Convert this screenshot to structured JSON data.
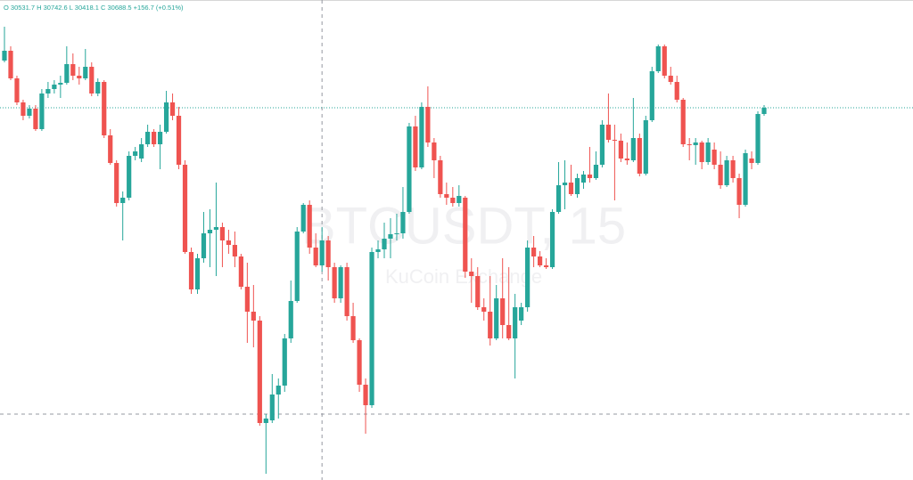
{
  "chart_data": {
    "type": "candlestick",
    "header": "O 30531.7  H 30742.6  L 30418.1  C 30688.5  +156.7 (+0.51%)",
    "watermark": "BTCUSDT, 15",
    "watermark_sub": "KuCoin Exchange",
    "up_color": "#26a69a",
    "down_color": "#ef5350",
    "ylim": [
      29852,
      30930
    ],
    "crosshair": {
      "x_index": 51,
      "y": 30000
    },
    "open": [
      30794,
      30816,
      30754,
      30700,
      30670,
      30686,
      30640,
      30720,
      30730,
      30740,
      30744,
      30786,
      30760,
      30754,
      30780,
      30720,
      30746,
      30626,
      30564,
      30474,
      30486,
      30580,
      30574,
      30606,
      30634,
      30606,
      30634,
      30700,
      30670,
      30560,
      30364,
      30280,
      30350,
      30406,
      30414,
      30420,
      30390,
      30380,
      30354,
      30286,
      30230,
      30210,
      29980,
      29986,
      30044,
      30064,
      30170,
      30254,
      30410,
      30470,
      30374,
      30334,
      30390,
      30330,
      30260,
      30330,
      30220,
      30166,
      30066,
      30020,
      30364,
      30370,
      30394,
      30404,
      30406,
      30454,
      30646,
      30554,
      30690,
      30610,
      30570,
      30494,
      30486,
      30474,
      30486,
      30320,
      30310,
      30240,
      30230,
      30170,
      30260,
      30200,
      30170,
      30210,
      30240,
      30374,
      30354,
      30334,
      30330,
      30454,
      30514,
      30520,
      30494,
      30520,
      30538,
      30530,
      30560,
      30650,
      30616,
      30614,
      30574,
      30570,
      30620,
      30540,
      30660,
      30770,
      30826,
      30760,
      30746,
      30706,
      30606,
      30604,
      30610,
      30566,
      30594,
      30560,
      30514,
      30570,
      30530,
      30470,
      30574,
      30564,
      30674
    ],
    "high": [
      30870,
      30826,
      30760,
      30706,
      30694,
      30694,
      30730,
      30746,
      30750,
      30760,
      30826,
      30810,
      30780,
      30820,
      30790,
      30754,
      30750,
      30640,
      30570,
      30500,
      30590,
      30600,
      30620,
      30650,
      30640,
      30650,
      30726,
      30720,
      30690,
      30570,
      30374,
      30360,
      30454,
      30460,
      30520,
      30430,
      30414,
      30410,
      30360,
      30340,
      30290,
      30220,
      30000,
      30090,
      30080,
      30180,
      30300,
      30420,
      30474,
      30480,
      30406,
      30420,
      30400,
      30340,
      30334,
      30340,
      30250,
      30170,
      30080,
      30374,
      30390,
      30430,
      30440,
      30450,
      30510,
      30654,
      30670,
      30700,
      30736,
      30620,
      30580,
      30520,
      30510,
      30514,
      30490,
      30350,
      30330,
      30260,
      30310,
      30290,
      30350,
      30330,
      30270,
      30250,
      30390,
      30400,
      30366,
      30350,
      30460,
      30566,
      30570,
      30560,
      30540,
      30546,
      30600,
      30590,
      30660,
      30720,
      30650,
      30630,
      30610,
      30710,
      30630,
      30670,
      30780,
      30830,
      30830,
      30780,
      30760,
      30710,
      30620,
      30620,
      30614,
      30620,
      30610,
      30590,
      30580,
      30580,
      30540,
      30594,
      30590,
      30680,
      30694
    ],
    "low": [
      30790,
      30750,
      30694,
      30660,
      30664,
      30636,
      30636,
      30710,
      30720,
      30710,
      30740,
      30750,
      30740,
      30750,
      30714,
      30714,
      30620,
      30560,
      30466,
      30390,
      30480,
      30570,
      30566,
      30600,
      30600,
      30550,
      30630,
      30660,
      30550,
      30360,
      30270,
      30270,
      30340,
      30330,
      30310,
      30330,
      30360,
      30330,
      30280,
      30160,
      30150,
      29974,
      29866,
      29980,
      29990,
      30050,
      30160,
      30250,
      30406,
      30360,
      30330,
      30320,
      30300,
      30250,
      30250,
      30210,
      30160,
      30050,
      29956,
      30014,
      30350,
      30350,
      30350,
      30390,
      30394,
      30450,
      30546,
      30550,
      30600,
      30530,
      30486,
      30470,
      30466,
      30466,
      30306,
      30250,
      30234,
      30210,
      30154,
      30166,
      30170,
      30166,
      30080,
      30200,
      30230,
      30330,
      30330,
      30326,
      30326,
      30450,
      30460,
      30490,
      30486,
      30506,
      30520,
      30526,
      30554,
      30610,
      30480,
      30566,
      30560,
      30566,
      30534,
      30536,
      30656,
      30766,
      30754,
      30740,
      30700,
      30600,
      30570,
      30560,
      30550,
      30560,
      30550,
      30506,
      30510,
      30520,
      30440,
      30466,
      30550,
      30560,
      30670
    ],
    "close": [
      30816,
      30754,
      30700,
      30670,
      30686,
      30640,
      30720,
      30730,
      30740,
      30744,
      30786,
      30760,
      30754,
      30780,
      30720,
      30746,
      30626,
      30564,
      30474,
      30486,
      30580,
      30590,
      30606,
      30634,
      30606,
      30634,
      30700,
      30670,
      30560,
      30364,
      30280,
      30350,
      30406,
      30414,
      30420,
      30390,
      30380,
      30354,
      30286,
      30230,
      30210,
      29980,
      29990,
      30044,
      30064,
      30170,
      30254,
      30410,
      30470,
      30374,
      30334,
      30390,
      30330,
      30260,
      30330,
      30220,
      30166,
      30066,
      30020,
      30364,
      30370,
      30394,
      30404,
      30406,
      30454,
      30646,
      30554,
      30690,
      30610,
      30570,
      30494,
      30486,
      30474,
      30490,
      30320,
      30310,
      30240,
      30230,
      30170,
      30260,
      30200,
      30170,
      30240,
      30240,
      30374,
      30354,
      30334,
      30330,
      30454,
      30514,
      30520,
      30494,
      30530,
      30538,
      30530,
      30560,
      30650,
      30616,
      30614,
      30574,
      30570,
      30620,
      30540,
      30660,
      30770,
      30826,
      30760,
      30746,
      30706,
      30606,
      30604,
      30610,
      30566,
      30610,
      30560,
      30514,
      30570,
      30530,
      30470,
      30586,
      30564,
      30674,
      30688
    ]
  }
}
